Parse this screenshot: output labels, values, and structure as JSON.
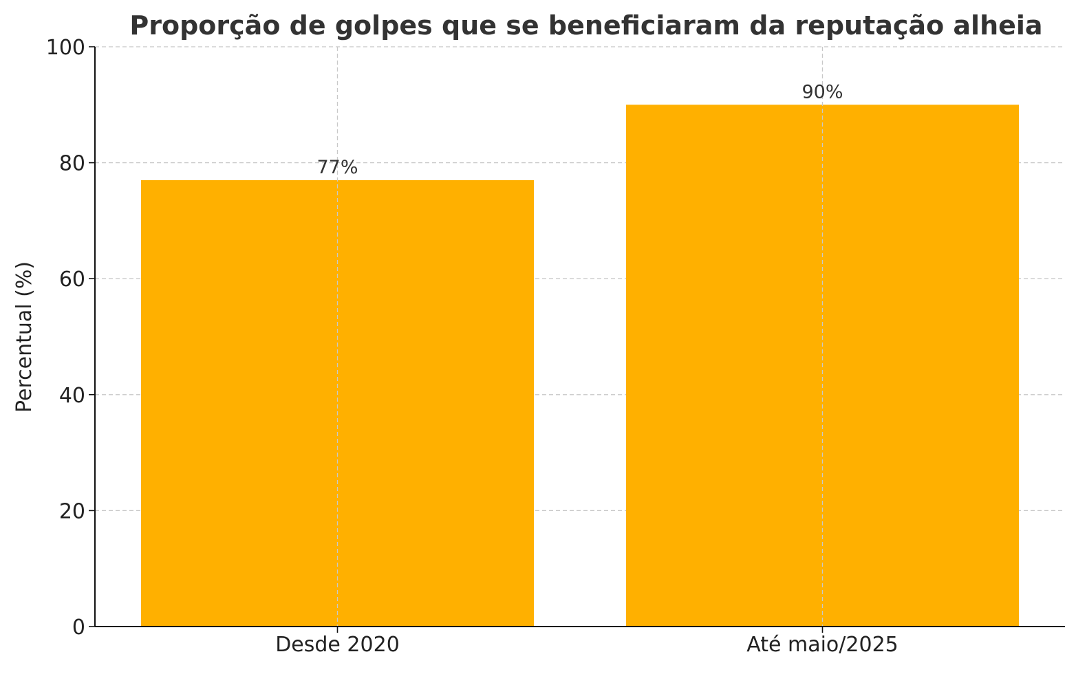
{
  "chart_data": {
    "type": "bar",
    "title": "Proporção de golpes que se beneficiaram da reputação alheia",
    "xlabel": "",
    "ylabel": "Percentual (%)",
    "categories": [
      "Desde 2020",
      "Até maio/2025"
    ],
    "values": [
      77,
      90
    ],
    "value_labels": [
      "77%",
      "90%"
    ],
    "ylim": [
      0,
      100
    ],
    "yticks": [
      0,
      20,
      40,
      60,
      80,
      100
    ],
    "grid": true,
    "legend": "none",
    "bar_color": "#FFB000"
  }
}
